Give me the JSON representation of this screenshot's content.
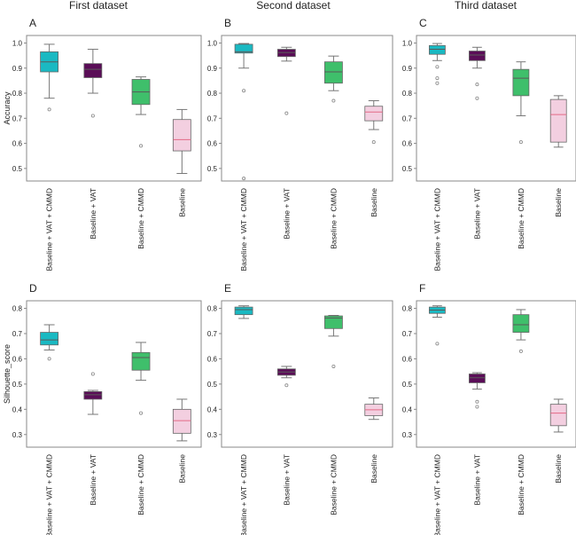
{
  "column_titles": [
    "First dataset",
    "Second dataset",
    "Third dataset"
  ],
  "colors": {
    "Baseline + VAT + CMMD": "#1ab9c2",
    "Baseline + VAT": "#5a0d57",
    "Baseline + CMMD": "#3fbf6b",
    "Baseline": "#f3cfe0",
    "baseline_median": "#e36a86",
    "median": "#5a5a5a",
    "whisker": "#777777",
    "frame": "#888888"
  },
  "chart_data": [
    {
      "type": "box",
      "panel": "A",
      "column": "First dataset",
      "ylabel": "Accuracy",
      "ylim": [
        0.45,
        1.03
      ],
      "yticks": [
        0.5,
        0.6,
        0.7,
        0.8,
        0.9,
        1.0
      ],
      "categories": [
        "Baseline + VAT + CMMD",
        "Baseline + VAT",
        "Baseline + CMMD",
        "Baseline"
      ],
      "boxes": [
        {
          "category": "Baseline + VAT + CMMD",
          "whisker_low": 0.78,
          "q1": 0.885,
          "median": 0.925,
          "q3": 0.965,
          "whisker_high": 0.995,
          "outliers": [
            0.735
          ]
        },
        {
          "category": "Baseline + VAT",
          "whisker_low": 0.8,
          "q1": 0.862,
          "median": 0.895,
          "q3": 0.918,
          "whisker_high": 0.975,
          "outliers": [
            0.71
          ]
        },
        {
          "category": "Baseline + CMMD",
          "whisker_low": 0.715,
          "q1": 0.755,
          "median": 0.805,
          "q3": 0.855,
          "whisker_high": 0.865,
          "outliers": [
            0.59
          ]
        },
        {
          "category": "Baseline",
          "whisker_low": 0.48,
          "q1": 0.57,
          "median": 0.615,
          "q3": 0.695,
          "whisker_high": 0.735,
          "outliers": []
        }
      ]
    },
    {
      "type": "box",
      "panel": "B",
      "column": "Second dataset",
      "ylabel": "",
      "ylim": [
        0.45,
        1.03
      ],
      "yticks": [
        0.5,
        0.6,
        0.7,
        0.8,
        0.9,
        1.0
      ],
      "categories": [
        "Baseline + VAT + CMMD",
        "Baseline + VAT",
        "Baseline + CMMD",
        "Baseline"
      ],
      "boxes": [
        {
          "category": "Baseline + VAT + CMMD",
          "whisker_low": 0.9,
          "q1": 0.96,
          "median": 0.965,
          "q3": 0.995,
          "whisker_high": 0.998,
          "outliers": [
            0.81,
            0.46
          ]
        },
        {
          "category": "Baseline + VAT",
          "whisker_low": 0.928,
          "q1": 0.946,
          "median": 0.962,
          "q3": 0.975,
          "whisker_high": 0.983,
          "outliers": [
            0.72
          ]
        },
        {
          "category": "Baseline + CMMD",
          "whisker_low": 0.81,
          "q1": 0.84,
          "median": 0.885,
          "q3": 0.925,
          "whisker_high": 0.948,
          "outliers": [
            0.77
          ]
        },
        {
          "category": "Baseline",
          "whisker_low": 0.655,
          "q1": 0.69,
          "median": 0.725,
          "q3": 0.748,
          "whisker_high": 0.77,
          "outliers": [
            0.605
          ]
        }
      ]
    },
    {
      "type": "box",
      "panel": "C",
      "column": "Third dataset",
      "ylabel": "",
      "ylim": [
        0.45,
        1.03
      ],
      "yticks": [
        0.5,
        0.6,
        0.7,
        0.8,
        0.9,
        1.0
      ],
      "categories": [
        "Baseline + VAT + CMMD",
        "Baseline + VAT",
        "Baseline + CMMD",
        "Baseline"
      ],
      "boxes": [
        {
          "category": "Baseline + VAT + CMMD",
          "whisker_low": 0.93,
          "q1": 0.955,
          "median": 0.975,
          "q3": 0.99,
          "whisker_high": 0.998,
          "outliers": [
            0.905,
            0.86,
            0.84
          ]
        },
        {
          "category": "Baseline + VAT",
          "whisker_low": 0.9,
          "q1": 0.93,
          "median": 0.952,
          "q3": 0.968,
          "whisker_high": 0.983,
          "outliers": [
            0.835,
            0.78
          ]
        },
        {
          "category": "Baseline + CMMD",
          "whisker_low": 0.71,
          "q1": 0.79,
          "median": 0.86,
          "q3": 0.895,
          "whisker_high": 0.925,
          "outliers": [
            0.605
          ]
        },
        {
          "category": "Baseline",
          "whisker_low": 0.585,
          "q1": 0.605,
          "median": 0.715,
          "q3": 0.775,
          "whisker_high": 0.79,
          "outliers": []
        }
      ]
    },
    {
      "type": "box",
      "panel": "D",
      "column": "First dataset",
      "ylabel": "Silhouette_score",
      "ylim": [
        0.25,
        0.83
      ],
      "yticks": [
        0.3,
        0.4,
        0.5,
        0.6,
        0.7,
        0.8
      ],
      "categories": [
        "Baseline + VAT + CMMD",
        "Baseline + VAT",
        "Baseline + CMMD",
        "Baseline"
      ],
      "boxes": [
        {
          "category": "Baseline + VAT + CMMD",
          "whisker_low": 0.635,
          "q1": 0.655,
          "median": 0.675,
          "q3": 0.705,
          "whisker_high": 0.735,
          "outliers": [
            0.6
          ]
        },
        {
          "category": "Baseline + VAT",
          "whisker_low": 0.38,
          "q1": 0.44,
          "median": 0.458,
          "q3": 0.47,
          "whisker_high": 0.475,
          "outliers": [
            0.54
          ]
        },
        {
          "category": "Baseline + CMMD",
          "whisker_low": 0.515,
          "q1": 0.555,
          "median": 0.605,
          "q3": 0.625,
          "whisker_high": 0.665,
          "outliers": [
            0.385
          ]
        },
        {
          "category": "Baseline",
          "whisker_low": 0.275,
          "q1": 0.305,
          "median": 0.355,
          "q3": 0.4,
          "whisker_high": 0.44,
          "outliers": []
        }
      ]
    },
    {
      "type": "box",
      "panel": "E",
      "column": "Second dataset",
      "ylabel": "",
      "ylim": [
        0.25,
        0.83
      ],
      "yticks": [
        0.3,
        0.4,
        0.5,
        0.6,
        0.7,
        0.8
      ],
      "categories": [
        "Baseline + VAT + CMMD",
        "Baseline + VAT",
        "Baseline + CMMD",
        "Baseline"
      ],
      "boxes": [
        {
          "category": "Baseline + VAT + CMMD",
          "whisker_low": 0.76,
          "q1": 0.775,
          "median": 0.795,
          "q3": 0.805,
          "whisker_high": 0.81,
          "outliers": []
        },
        {
          "category": "Baseline + VAT",
          "whisker_low": 0.525,
          "q1": 0.535,
          "median": 0.548,
          "q3": 0.56,
          "whisker_high": 0.57,
          "outliers": [
            0.495
          ]
        },
        {
          "category": "Baseline + CMMD",
          "whisker_low": 0.69,
          "q1": 0.72,
          "median": 0.762,
          "q3": 0.77,
          "whisker_high": 0.772,
          "outliers": [
            0.57
          ]
        },
        {
          "category": "Baseline",
          "whisker_low": 0.36,
          "q1": 0.375,
          "median": 0.398,
          "q3": 0.42,
          "whisker_high": 0.445,
          "outliers": []
        }
      ]
    },
    {
      "type": "box",
      "panel": "F",
      "column": "Third dataset",
      "ylabel": "",
      "ylim": [
        0.25,
        0.83
      ],
      "yticks": [
        0.3,
        0.4,
        0.5,
        0.6,
        0.7,
        0.8
      ],
      "categories": [
        "Baseline + VAT + CMMD",
        "Baseline + VAT",
        "Baseline + CMMD",
        "Baseline"
      ],
      "boxes": [
        {
          "category": "Baseline + VAT + CMMD",
          "whisker_low": 0.765,
          "q1": 0.78,
          "median": 0.793,
          "q3": 0.805,
          "whisker_high": 0.81,
          "outliers": [
            0.66
          ]
        },
        {
          "category": "Baseline + VAT",
          "whisker_low": 0.48,
          "q1": 0.505,
          "median": 0.525,
          "q3": 0.54,
          "whisker_high": 0.545,
          "outliers": [
            0.43,
            0.41
          ]
        },
        {
          "category": "Baseline + CMMD",
          "whisker_low": 0.675,
          "q1": 0.705,
          "median": 0.735,
          "q3": 0.775,
          "whisker_high": 0.795,
          "outliers": [
            0.63
          ]
        },
        {
          "category": "Baseline",
          "whisker_low": 0.31,
          "q1": 0.335,
          "median": 0.385,
          "q3": 0.42,
          "whisker_high": 0.44,
          "outliers": []
        }
      ]
    }
  ]
}
